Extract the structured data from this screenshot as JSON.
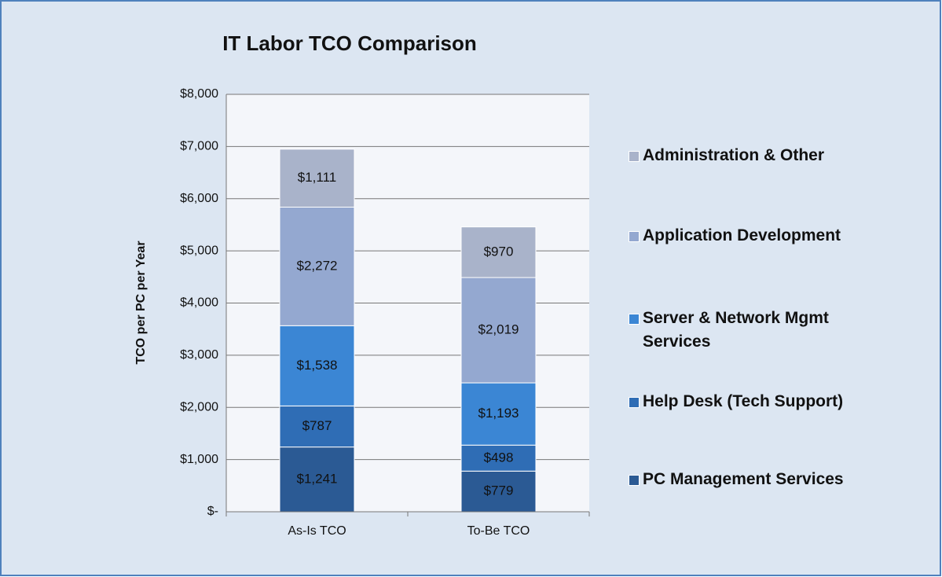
{
  "chart_data": {
    "type": "stacked_bar",
    "title": "IT Labor TCO Comparison",
    "y_label": "TCO per PC per Year",
    "categories": [
      "As-Is TCO",
      "To-Be TCO"
    ],
    "series": [
      {
        "name": "PC Management Services",
        "color": "#2b5a94",
        "values": [
          1241,
          779
        ],
        "value_labels": [
          "$1,241",
          "$779"
        ]
      },
      {
        "name": "Help Desk (Tech Support)",
        "color": "#2f6db5",
        "values": [
          787,
          498
        ],
        "value_labels": [
          "$787",
          "$498"
        ]
      },
      {
        "name": "Server & Network Mgmt Services",
        "color": "#3b86d4",
        "values": [
          1538,
          1193
        ],
        "value_labels": [
          "$1,538",
          "$1,193"
        ]
      },
      {
        "name": "Application Development",
        "color": "#94a8d0",
        "values": [
          2272,
          2019
        ],
        "value_labels": [
          "$2,272",
          "$2,019"
        ]
      },
      {
        "name": "Administration & Other",
        "color": "#a9b3ca",
        "values": [
          1111,
          970
        ],
        "value_labels": [
          "$1,111",
          "$970"
        ]
      }
    ],
    "ylim": [
      0,
      8000
    ],
    "yticks": [
      {
        "value": 0,
        "label": "$-"
      },
      {
        "value": 1000,
        "label": "$1,000"
      },
      {
        "value": 2000,
        "label": "$2,000"
      },
      {
        "value": 3000,
        "label": "$3,000"
      },
      {
        "value": 4000,
        "label": "$4,000"
      },
      {
        "value": 5000,
        "label": "$5,000"
      },
      {
        "value": 6000,
        "label": "$6,000"
      },
      {
        "value": 7000,
        "label": "$7,000"
      },
      {
        "value": 8000,
        "label": "$8,000"
      }
    ],
    "grid": true
  }
}
